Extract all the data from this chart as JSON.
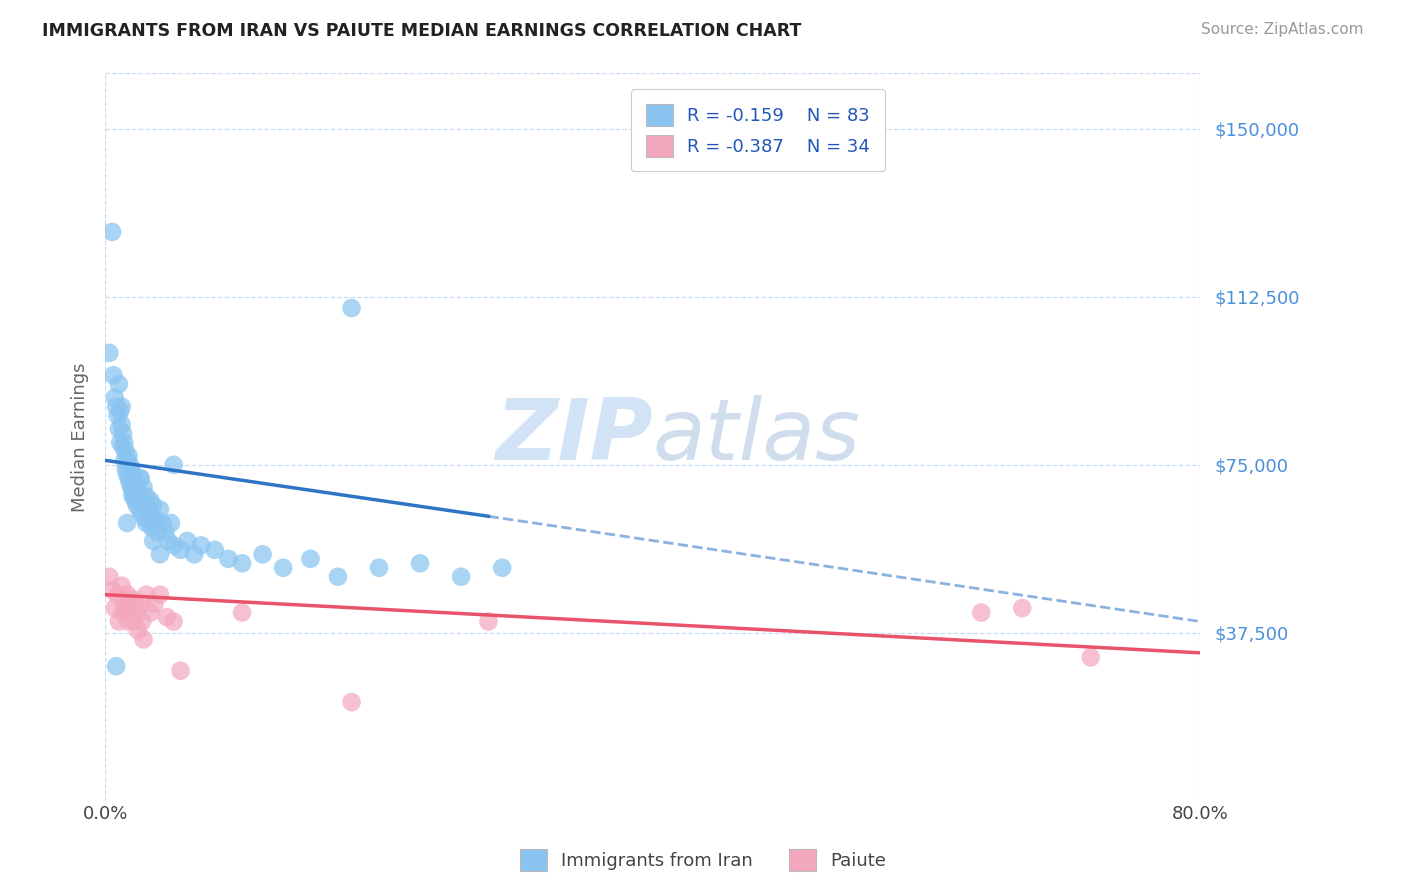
{
  "title": "IMMIGRANTS FROM IRAN VS PAIUTE MEDIAN EARNINGS CORRELATION CHART",
  "source": "Source: ZipAtlas.com",
  "ylabel": "Median Earnings",
  "xlim": [
    0.0,
    0.8
  ],
  "ylim": [
    0,
    162500
  ],
  "yticks": [
    0,
    37500,
    75000,
    112500,
    150000
  ],
  "ytick_labels": [
    "",
    "$37,500",
    "$75,000",
    "$112,500",
    "$150,000"
  ],
  "blue_color": "#89c4f0",
  "pink_color": "#f4a8be",
  "trend_blue_color": "#2d74c4",
  "trend_pink_color": "#e8536a",
  "grid_color": "#c8ddf0",
  "watermark_color": "#ccdff5",
  "blue_trend_x0": 0.0,
  "blue_trend_y0": 76000,
  "blue_trend_x_break": 0.28,
  "blue_trend_y_break": 63500,
  "blue_trend_x1": 0.8,
  "blue_trend_y1": 40000,
  "pink_trend_x0": 0.0,
  "pink_trend_y0": 46000,
  "pink_trend_x1": 0.8,
  "pink_trend_y1": 33000,
  "blue_scatter_x": [
    0.003,
    0.005,
    0.006,
    0.007,
    0.008,
    0.009,
    0.01,
    0.01,
    0.011,
    0.011,
    0.012,
    0.012,
    0.013,
    0.013,
    0.014,
    0.014,
    0.015,
    0.015,
    0.016,
    0.016,
    0.017,
    0.017,
    0.018,
    0.018,
    0.019,
    0.019,
    0.02,
    0.02,
    0.021,
    0.021,
    0.022,
    0.022,
    0.023,
    0.023,
    0.024,
    0.025,
    0.025,
    0.026,
    0.026,
    0.027,
    0.028,
    0.028,
    0.029,
    0.03,
    0.03,
    0.031,
    0.032,
    0.033,
    0.034,
    0.035,
    0.036,
    0.037,
    0.038,
    0.04,
    0.042,
    0.044,
    0.046,
    0.048,
    0.05,
    0.055,
    0.06,
    0.065,
    0.07,
    0.08,
    0.09,
    0.1,
    0.115,
    0.13,
    0.15,
    0.17,
    0.2,
    0.23,
    0.26,
    0.29,
    0.008,
    0.016,
    0.02,
    0.025,
    0.03,
    0.035,
    0.18,
    0.04,
    0.05
  ],
  "blue_scatter_y": [
    100000,
    127000,
    95000,
    90000,
    88000,
    86000,
    93000,
    83000,
    87000,
    80000,
    84000,
    88000,
    79000,
    82000,
    76000,
    80000,
    74000,
    78000,
    73000,
    76000,
    72000,
    77000,
    71000,
    75000,
    70000,
    74000,
    69000,
    73000,
    68000,
    72000,
    67000,
    71000,
    66000,
    70000,
    69000,
    68000,
    65000,
    67000,
    72000,
    64000,
    66000,
    70000,
    63000,
    68000,
    62000,
    65000,
    64000,
    67000,
    61000,
    66000,
    63000,
    62000,
    60000,
    65000,
    62000,
    60000,
    58000,
    62000,
    57000,
    56000,
    58000,
    55000,
    57000,
    56000,
    54000,
    53000,
    55000,
    52000,
    54000,
    50000,
    52000,
    53000,
    50000,
    52000,
    30000,
    62000,
    68000,
    72000,
    66000,
    58000,
    110000,
    55000,
    75000
  ],
  "pink_scatter_x": [
    0.003,
    0.005,
    0.007,
    0.009,
    0.01,
    0.012,
    0.013,
    0.014,
    0.015,
    0.016,
    0.017,
    0.018,
    0.019,
    0.02,
    0.021,
    0.022,
    0.023,
    0.024,
    0.025,
    0.027,
    0.028,
    0.03,
    0.033,
    0.036,
    0.04,
    0.045,
    0.05,
    0.055,
    0.1,
    0.18,
    0.28,
    0.64,
    0.67,
    0.72
  ],
  "pink_scatter_y": [
    50000,
    47000,
    43000,
    46000,
    40000,
    48000,
    42000,
    44000,
    43000,
    46000,
    40000,
    44000,
    42000,
    45000,
    40000,
    44000,
    42000,
    38000,
    43000,
    40000,
    36000,
    46000,
    42000,
    44000,
    46000,
    41000,
    40000,
    29000,
    42000,
    22000,
    40000,
    42000,
    43000,
    32000
  ]
}
